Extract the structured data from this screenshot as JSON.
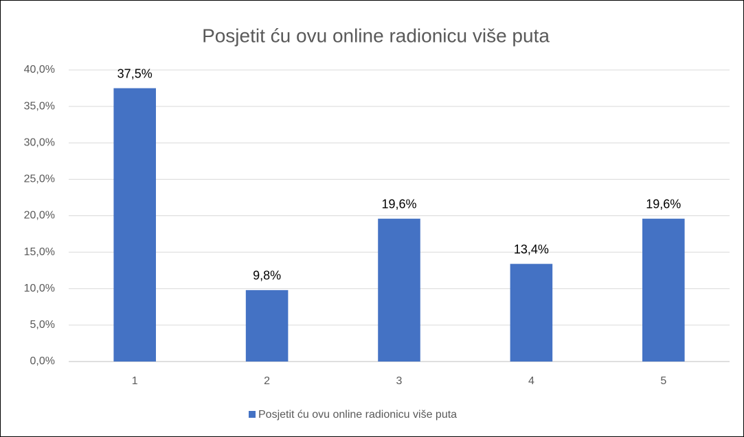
{
  "chart_data": {
    "type": "bar",
    "title": "Posjetit ću ovu online radionicu više puta",
    "categories": [
      "1",
      "2",
      "3",
      "4",
      "5"
    ],
    "series": [
      {
        "name": "Posjetit ću ovu online radionicu više puta",
        "color": "#4472c4",
        "values": [
          37.5,
          9.8,
          19.6,
          13.4,
          19.6
        ],
        "value_labels": [
          "37,5%",
          "9,8%",
          "19,6%",
          "13,4%",
          "19,6%"
        ]
      }
    ],
    "ylim": [
      0,
      40
    ],
    "yticks": [
      {
        "value": 0,
        "label": "0,0%"
      },
      {
        "value": 5,
        "label": "5,0%"
      },
      {
        "value": 10,
        "label": "10,0%"
      },
      {
        "value": 15,
        "label": "15,0%"
      },
      {
        "value": 20,
        "label": "20,0%"
      },
      {
        "value": 25,
        "label": "25,0%"
      },
      {
        "value": 30,
        "label": "30,0%"
      },
      {
        "value": 35,
        "label": "35,0%"
      },
      {
        "value": 40,
        "label": "40,0%"
      }
    ],
    "grid": true,
    "legend": "bottom"
  }
}
